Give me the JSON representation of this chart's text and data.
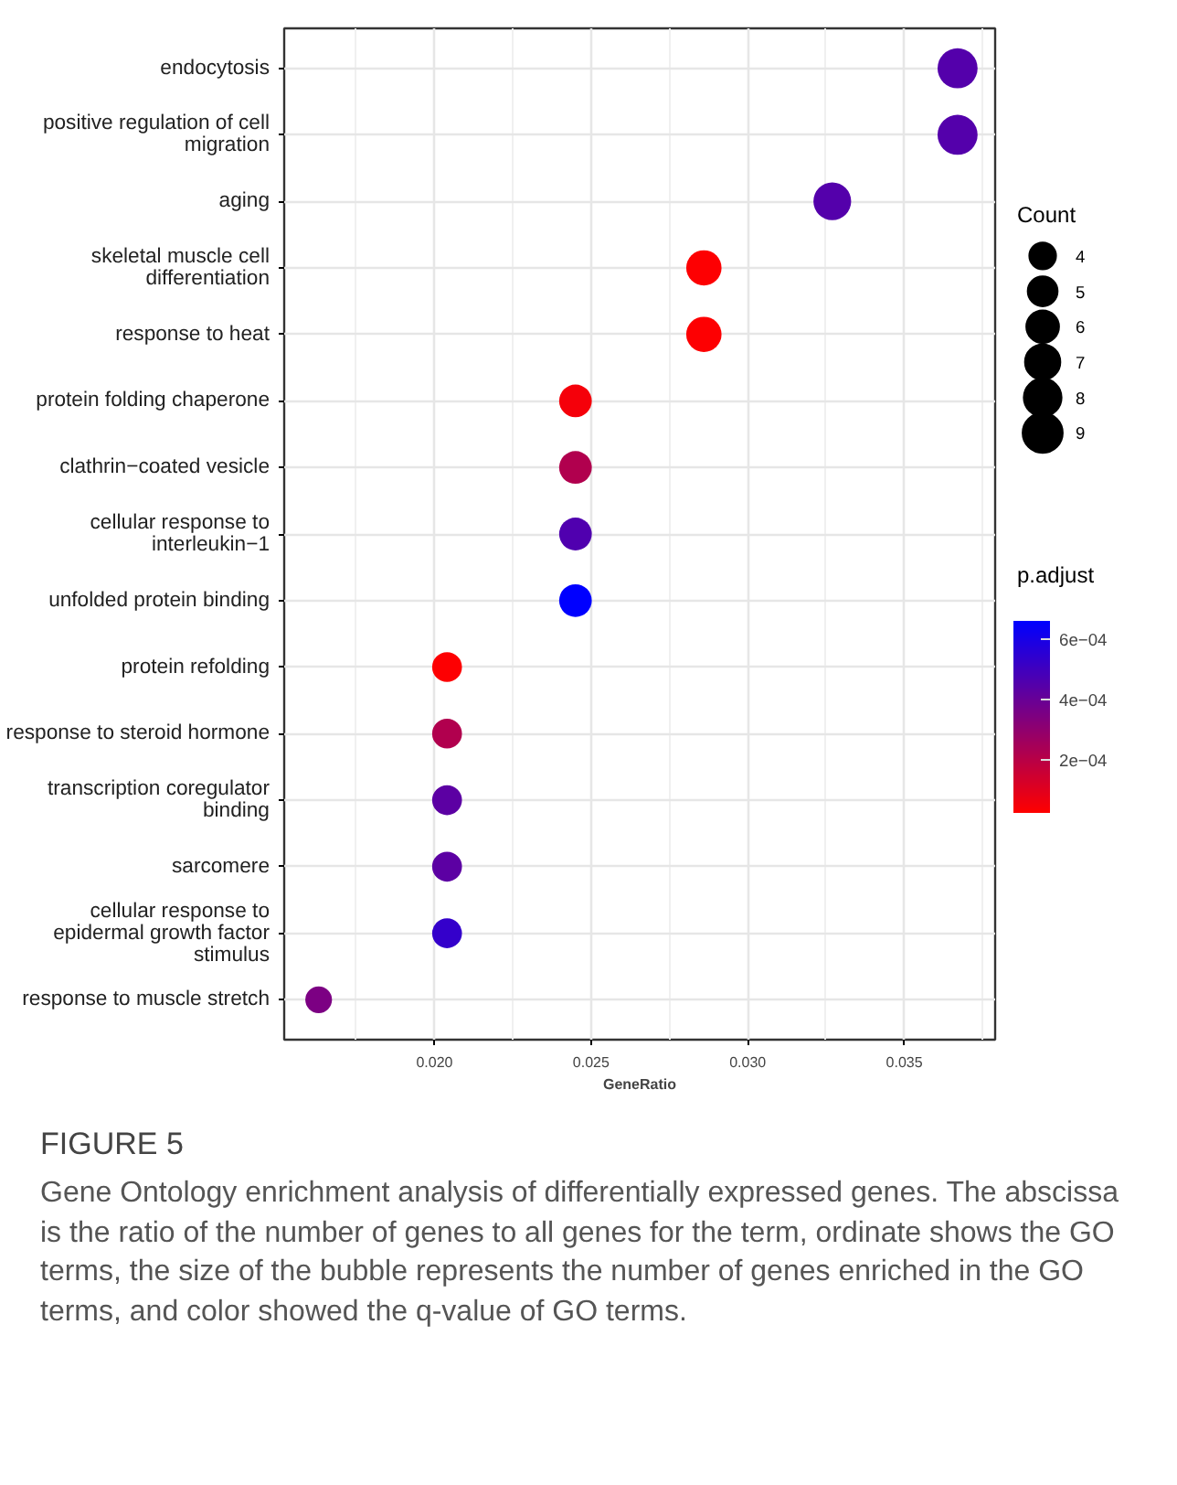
{
  "chart_data": {
    "type": "bubble",
    "xlabel": "GeneRatio",
    "legend_title": "Count",
    "clabel": "p.adjust",
    "categories": [
      "endocytosis",
      "positive regulation of cell migration",
      "aging",
      "skeletal muscle cell differentiation",
      "response to heat",
      "protein folding chaperone",
      "clathrin−coated vesicle",
      "cellular response to interleukin−1",
      "unfolded protein binding",
      "protein refolding",
      "response to steroid hormone",
      "transcription coregulator binding",
      "sarcomere",
      "cellular response to epidermal growth factor stimulus",
      "response to muscle stretch"
    ],
    "values": [
      0.0367,
      0.0367,
      0.0327,
      0.0286,
      0.0286,
      0.0245,
      0.0245,
      0.0245,
      0.0245,
      0.0204,
      0.0204,
      0.0204,
      0.0204,
      0.0204,
      0.0163
    ],
    "sizes": [
      9,
      9,
      8,
      7,
      7,
      6,
      6,
      6,
      6,
      5,
      5,
      5,
      5,
      5,
      4
    ],
    "size_legend": [
      {
        "value": 4,
        "label": "4"
      },
      {
        "value": 5,
        "label": "5"
      },
      {
        "value": 6,
        "label": "6"
      },
      {
        "value": 7,
        "label": "7"
      },
      {
        "value": 8,
        "label": "8"
      },
      {
        "value": 9,
        "label": "9"
      }
    ],
    "orientation": "horizontal",
    "cvalues": [
      0.00045,
      0.00045,
      0.00045,
      3e-05,
      3e-05,
      5e-05,
      0.00022,
      0.00046,
      0.00066,
      3e-05,
      0.00022,
      0.00043,
      0.00043,
      0.00053,
      0.00035
    ],
    "clim": [
      2.4e-05,
      0.00066
    ],
    "cticks": [
      {
        "value": 0.0002,
        "label": "2e−04"
      },
      {
        "value": 0.0004,
        "label": "4e−04"
      },
      {
        "value": 0.0006,
        "label": "6e−04"
      }
    ],
    "xlim": [
      0.0152,
      0.0379
    ],
    "xticks": [
      {
        "value": 0.02,
        "label": "0.020"
      },
      {
        "value": 0.025,
        "label": "0.025"
      },
      {
        "value": 0.03,
        "label": "0.030"
      },
      {
        "value": 0.035,
        "label": "0.035"
      }
    ],
    "grid": true,
    "marker": "circle",
    "annotations": [
      "FIGURE 5",
      "Gene Ontology enrichment analysis of differentially expressed genes. The abscissa is the ratio of the number of genes to all genes for the term, ordinate shows the GO terms, the size of the bubble represents the number of genes enriched in the GO terms, and color showed the q-value of GO terms."
    ]
  }
}
